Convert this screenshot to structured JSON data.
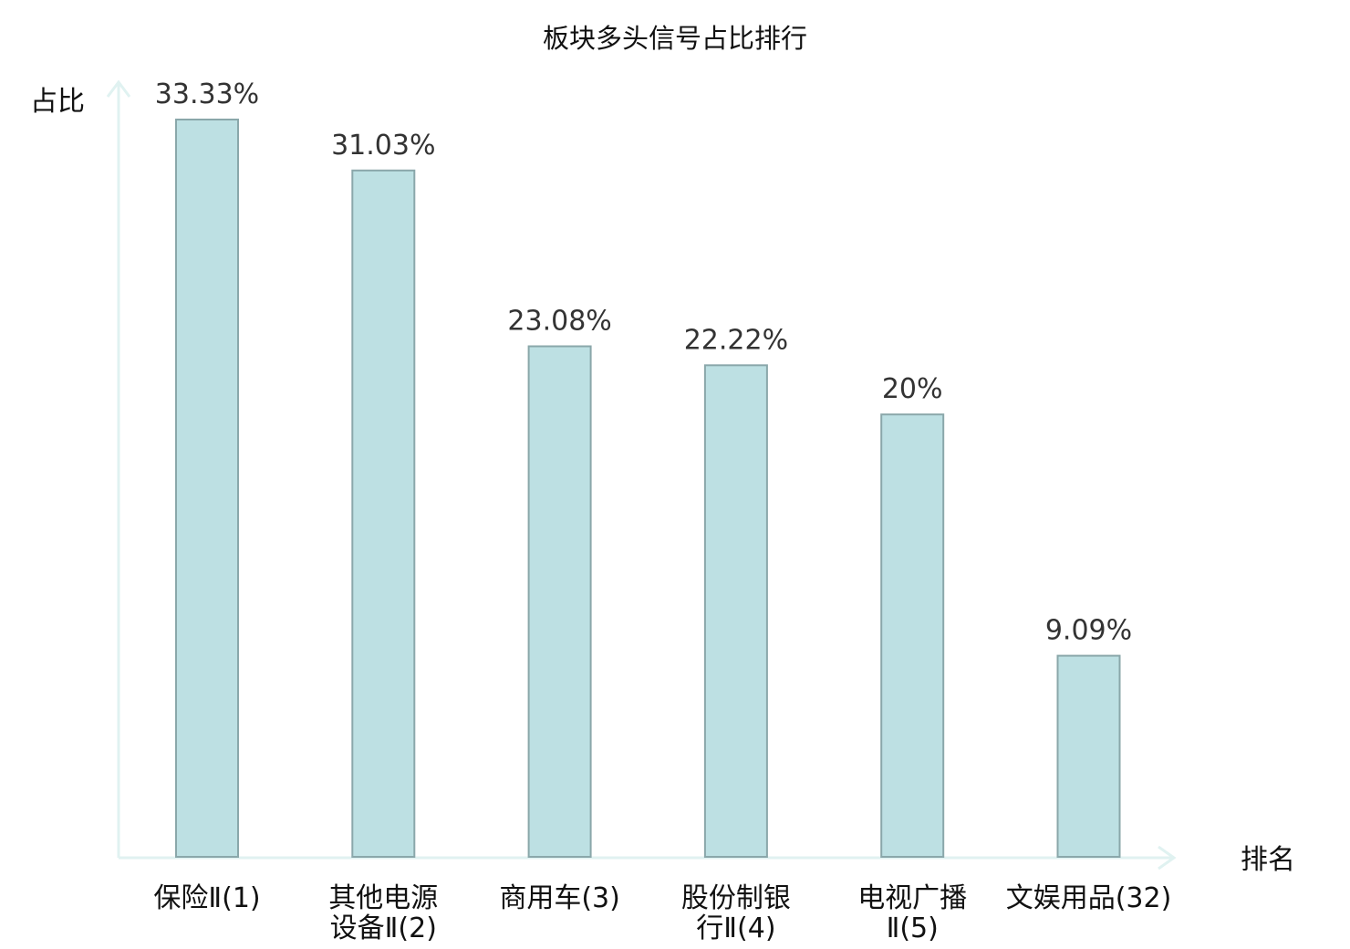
{
  "chart_data": {
    "type": "bar",
    "title": "板块多头信号占比排行",
    "ylabel": "占比",
    "xlabel": "排名",
    "ylim": [
      0,
      35
    ],
    "grid": false,
    "categories": [
      [
        "保险Ⅱ(1)"
      ],
      [
        "其他电源",
        "设备Ⅱ(2)"
      ],
      [
        "商用车(3)"
      ],
      [
        "股份制银",
        "行Ⅱ(4)"
      ],
      [
        "电视广播",
        "Ⅱ(5)"
      ],
      [
        "文娱用品(32)"
      ]
    ],
    "values": [
      33.33,
      31.03,
      23.08,
      22.22,
      20,
      9.09
    ],
    "value_labels": [
      "33.33%",
      "31.03%",
      "23.08%",
      "22.22%",
      "20%",
      "9.09%"
    ],
    "highlight_index": 5,
    "colors": {
      "bar_fill": "#bde0e3",
      "bar_stroke": "#8aa7aa",
      "axis": "#e0f2f1",
      "highlight_text": "#e00000",
      "text": "#111111",
      "value_text": "#333333"
    }
  }
}
